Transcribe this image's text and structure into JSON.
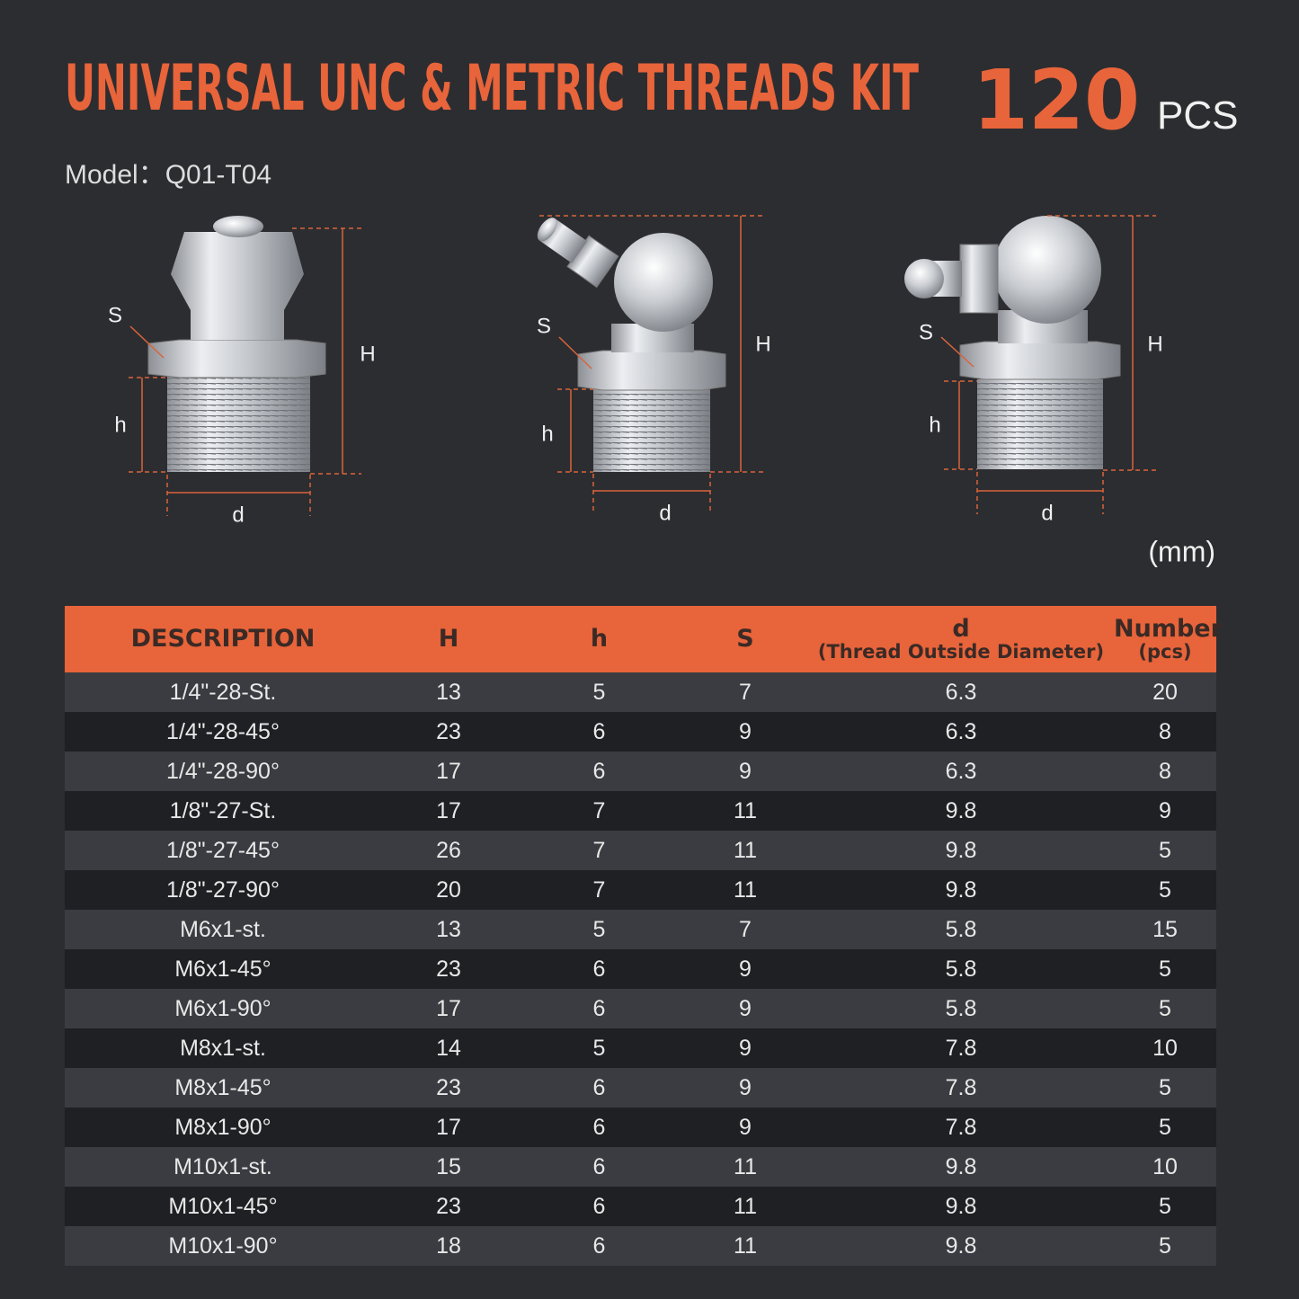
{
  "header": {
    "title": "UNIVERSAL UNC & METRIC THREADS KIT",
    "count": "120",
    "count_unit": "PCS",
    "model": "Model：Q01-T04"
  },
  "figures": [
    {
      "labels": {
        "S": "S",
        "H": "H",
        "h": "h",
        "d": "d"
      }
    },
    {
      "labels": {
        "S": "S",
        "H": "H",
        "h": "h",
        "d": "d"
      }
    },
    {
      "labels": {
        "S": "S",
        "H": "H",
        "h": "h",
        "d": "d"
      }
    }
  ],
  "unit": "(mm)",
  "table": {
    "headers": [
      {
        "label": "DESCRIPTION"
      },
      {
        "label": "H"
      },
      {
        "label": "h"
      },
      {
        "label": "S"
      },
      {
        "label": "d",
        "sublabel": "(Thread Outside Diameter)"
      },
      {
        "label": "Number",
        "sublabel": "(pcs)"
      }
    ],
    "rows": [
      [
        "1/4\"-28-St.",
        "13",
        "5",
        "7",
        "6.3",
        "20"
      ],
      [
        "1/4\"-28-45°",
        "23",
        "6",
        "9",
        "6.3",
        "8"
      ],
      [
        "1/4\"-28-90°",
        "17",
        "6",
        "9",
        "6.3",
        "8"
      ],
      [
        "1/8\"-27-St.",
        "17",
        "7",
        "11",
        "9.8",
        "9"
      ],
      [
        "1/8\"-27-45°",
        "26",
        "7",
        "11",
        "9.8",
        "5"
      ],
      [
        "1/8\"-27-90°",
        "20",
        "7",
        "11",
        "9.8",
        "5"
      ],
      [
        "M6x1-st.",
        "13",
        "5",
        "7",
        "5.8",
        "15"
      ],
      [
        "M6x1-45°",
        "23",
        "6",
        "9",
        "5.8",
        "5"
      ],
      [
        "M6x1-90°",
        "17",
        "6",
        "9",
        "5.8",
        "5"
      ],
      [
        "M8x1-st.",
        "14",
        "5",
        "9",
        "7.8",
        "10"
      ],
      [
        "M8x1-45°",
        "23",
        "6",
        "9",
        "7.8",
        "5"
      ],
      [
        "M8x1-90°",
        "17",
        "6",
        "9",
        "7.8",
        "5"
      ],
      [
        "M10x1-st.",
        "15",
        "6",
        "11",
        "9.8",
        "10"
      ],
      [
        "M10x1-45°",
        "23",
        "6",
        "11",
        "9.8",
        "5"
      ],
      [
        "M10x1-90°",
        "18",
        "6",
        "11",
        "9.8",
        "5"
      ]
    ]
  }
}
